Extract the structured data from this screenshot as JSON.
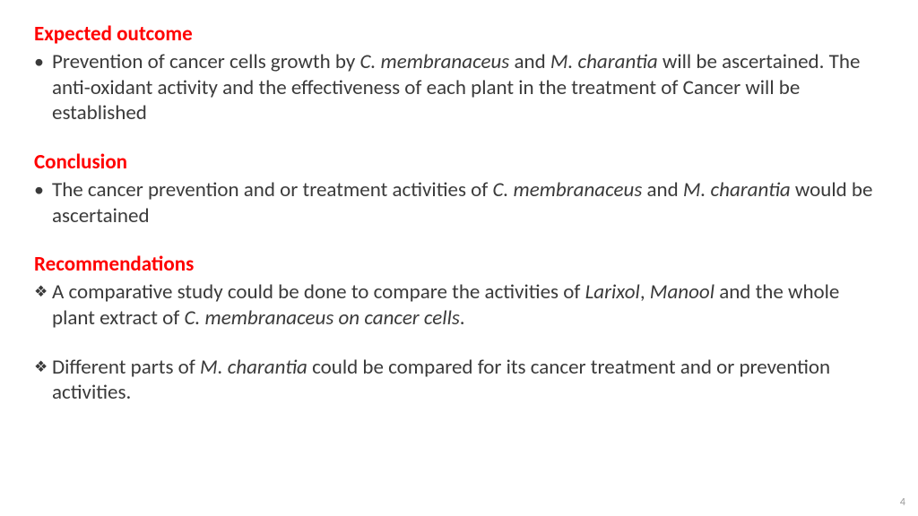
{
  "colors": {
    "heading": "#ff0000",
    "body_text": "#3a3a3a",
    "background": "#ffffff",
    "pagenum": "#9a9a9a"
  },
  "typography": {
    "heading_fontsize_pt": 17,
    "body_fontsize_pt": 17,
    "heading_weight": 700,
    "body_weight": 400,
    "font_family": "Calibri"
  },
  "page_number": "4",
  "sections": [
    {
      "heading": "Expected outcome",
      "bullet_style": "dot",
      "items": [
        {
          "runs": [
            {
              "t": "Prevention of cancer cells growth by ",
              "i": false
            },
            {
              "t": "C. membranaceus ",
              "i": true
            },
            {
              "t": "and ",
              "i": false
            },
            {
              "t": "M. charantia ",
              "i": true
            },
            {
              "t": "will be ascertained. The anti-oxidant activity and the effectiveness of each plant in the treatment of Cancer will be established",
              "i": false
            }
          ]
        }
      ]
    },
    {
      "heading": "Conclusion",
      "bullet_style": "dot",
      "items": [
        {
          "runs": [
            {
              "t": "The cancer prevention and or treatment activities of ",
              "i": false
            },
            {
              "t": "C. membranaceus ",
              "i": true
            },
            {
              "t": "and ",
              "i": false
            },
            {
              "t": "M. charantia ",
              "i": true
            },
            {
              "t": "would be ascertained",
              "i": false
            }
          ]
        }
      ]
    },
    {
      "heading": "Recommendations",
      "bullet_style": "diamond",
      "items": [
        {
          "runs": [
            {
              "t": "A comparative study could be done to compare the activities of ",
              "i": false
            },
            {
              "t": "Larixol",
              "i": true
            },
            {
              "t": ", ",
              "i": false
            },
            {
              "t": "Manool ",
              "i": true
            },
            {
              "t": "and the whole plant extract of ",
              "i": false
            },
            {
              "t": "C. membranaceus on cancer cells",
              "i": true
            },
            {
              "t": ".",
              "i": false
            }
          ]
        },
        {
          "runs": [
            {
              "t": "Different parts of  ",
              "i": false
            },
            {
              "t": "M. charantia ",
              "i": true
            },
            {
              "t": "could be compared for its cancer treatment and or prevention activities.",
              "i": false
            }
          ]
        }
      ]
    }
  ]
}
